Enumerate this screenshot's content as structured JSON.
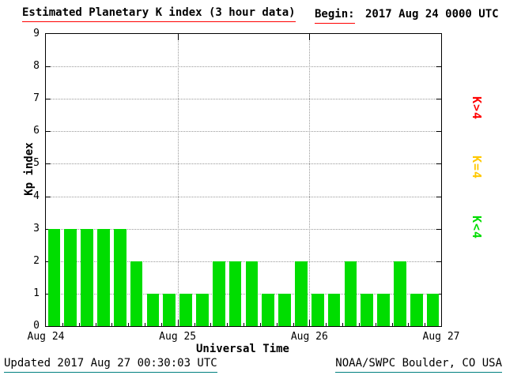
{
  "header": {
    "title": "Estimated Planetary K index (3 hour data)",
    "begin_label": "Begin:",
    "begin_value": "2017 Aug 24 0000 UTC"
  },
  "footer": {
    "updated": "Updated 2017 Aug 27 00:30:03 UTC",
    "source": "NOAA/SWPC Boulder, CO USA"
  },
  "legend": [
    {
      "label": "K>4",
      "color": "#ff0000"
    },
    {
      "label": "K=4",
      "color": "#ffc800"
    },
    {
      "label": "K<4",
      "color": "#00dd00"
    }
  ],
  "colors": {
    "bar": "#00dd00",
    "title_underline": "#ff0000",
    "footer_underline": "#008080",
    "grid": "#999999"
  },
  "chart_data": {
    "type": "bar",
    "title": "Estimated Planetary K index (3 hour data)",
    "xlabel": "Universal Time",
    "ylabel": "Kp index",
    "ylim": [
      0,
      9
    ],
    "yticks": [
      0,
      1,
      2,
      3,
      4,
      5,
      6,
      7,
      8,
      9
    ],
    "xticklabels": [
      "Aug 24",
      "Aug 25",
      "Aug 26",
      "Aug 27"
    ],
    "bar_interval_hours": 3,
    "grid": "dotted",
    "legend_position": "right",
    "values": [
      3,
      3,
      3,
      3,
      3,
      2,
      1,
      1,
      1,
      1,
      2,
      2,
      2,
      1,
      1,
      2,
      1,
      1,
      2,
      1,
      1,
      2,
      1,
      1
    ],
    "days": [
      {
        "date": "Aug 24",
        "kp": [
          3,
          3,
          3,
          3,
          3,
          2,
          1,
          1
        ]
      },
      {
        "date": "Aug 25",
        "kp": [
          1,
          1,
          2,
          2,
          2,
          1,
          1,
          2
        ]
      },
      {
        "date": "Aug 26",
        "kp": [
          1,
          1,
          2,
          1,
          1,
          2,
          1,
          1
        ]
      }
    ]
  }
}
